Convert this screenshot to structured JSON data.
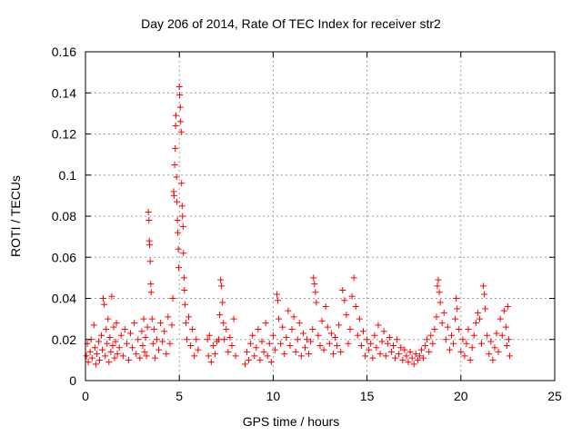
{
  "chart_data": {
    "type": "scatter",
    "title": "Day 206 of 2014, Rate Of TEC Index for receiver str2",
    "xlabel": "GPS time / hours",
    "ylabel": "ROTI / TECUs",
    "xlim": [
      0,
      25
    ],
    "ylim": [
      0,
      0.16
    ],
    "x_ticks": [
      0,
      5,
      10,
      15,
      20,
      25
    ],
    "y_ticks": [
      0,
      0.02,
      0.04,
      0.06,
      0.08,
      0.1,
      0.12,
      0.14,
      0.16
    ],
    "y_tick_labels": [
      "0",
      "0.02",
      "0.04",
      "0.06",
      "0.08",
      "0.1",
      "0.12",
      "0.14",
      "0.16"
    ],
    "grid": true,
    "marker": "+",
    "color": "#ff0000",
    "series": [
      {
        "points": [
          [
            0.05,
            0.012
          ],
          [
            0.1,
            0.018
          ],
          [
            0.15,
            0.009
          ],
          [
            0.25,
            0.014
          ],
          [
            0.3,
            0.02
          ],
          [
            0.35,
            0.011
          ],
          [
            0.45,
            0.027
          ],
          [
            0.5,
            0.016
          ],
          [
            0.55,
            0.008
          ],
          [
            0.6,
            0.013
          ],
          [
            0.7,
            0.019
          ],
          [
            0.75,
            0.01
          ],
          [
            0.85,
            0.022
          ],
          [
            0.9,
            0.015
          ],
          [
            0.95,
            0.04
          ],
          [
            1.0,
            0.037
          ],
          [
            1.05,
            0.012
          ],
          [
            1.1,
            0.025
          ],
          [
            1.15,
            0.018
          ],
          [
            1.2,
            0.03
          ],
          [
            1.25,
            0.009
          ],
          [
            1.3,
            0.021
          ],
          [
            1.35,
            0.014
          ],
          [
            1.4,
            0.041
          ],
          [
            1.45,
            0.017
          ],
          [
            1.5,
            0.026
          ],
          [
            1.55,
            0.011
          ],
          [
            1.6,
            0.019
          ],
          [
            1.65,
            0.028
          ],
          [
            1.7,
            0.013
          ],
          [
            1.8,
            0.016
          ],
          [
            1.9,
            0.022
          ],
          [
            2.0,
            0.012
          ],
          [
            2.1,
            0.025
          ],
          [
            2.2,
            0.018
          ],
          [
            2.3,
            0.01
          ],
          [
            2.4,
            0.023
          ],
          [
            2.5,
            0.016
          ],
          [
            2.6,
            0.028
          ],
          [
            2.7,
            0.013
          ],
          [
            2.8,
            0.02
          ],
          [
            2.9,
            0.011
          ],
          [
            3.0,
            0.024
          ],
          [
            3.05,
            0.017
          ],
          [
            3.1,
            0.03
          ],
          [
            3.15,
            0.014
          ],
          [
            3.2,
            0.021
          ],
          [
            3.25,
            0.012
          ],
          [
            3.3,
            0.026
          ],
          [
            3.35,
            0.082
          ],
          [
            3.38,
            0.078
          ],
          [
            3.4,
            0.068
          ],
          [
            3.42,
            0.066
          ],
          [
            3.45,
            0.058
          ],
          [
            3.48,
            0.047
          ],
          [
            3.5,
            0.043
          ],
          [
            3.55,
            0.03
          ],
          [
            3.6,
            0.018
          ],
          [
            3.65,
            0.025
          ],
          [
            3.7,
            0.011
          ],
          [
            3.8,
            0.02
          ],
          [
            3.9,
            0.015
          ],
          [
            4.0,
            0.028
          ],
          [
            4.1,
            0.019
          ],
          [
            4.2,
            0.024
          ],
          [
            4.3,
            0.013
          ],
          [
            4.4,
            0.031
          ],
          [
            4.5,
            0.018
          ],
          [
            4.6,
            0.027
          ],
          [
            4.65,
            0.04
          ],
          [
            4.7,
            0.092
          ],
          [
            4.72,
            0.09
          ],
          [
            4.75,
            0.105
          ],
          [
            4.78,
            0.113
          ],
          [
            4.8,
            0.124
          ],
          [
            4.82,
            0.129
          ],
          [
            4.85,
            0.099
          ],
          [
            4.87,
            0.087
          ],
          [
            4.9,
            0.078
          ],
          [
            4.92,
            0.072
          ],
          [
            4.95,
            0.064
          ],
          [
            4.97,
            0.055
          ],
          [
            5.0,
            0.143
          ],
          [
            5.02,
            0.139
          ],
          [
            5.05,
            0.133
          ],
          [
            5.07,
            0.126
          ],
          [
            5.1,
            0.121
          ],
          [
            5.12,
            0.096
          ],
          [
            5.15,
            0.085
          ],
          [
            5.17,
            0.08
          ],
          [
            5.2,
            0.075
          ],
          [
            5.22,
            0.062
          ],
          [
            5.25,
            0.05
          ],
          [
            5.27,
            0.044
          ],
          [
            5.3,
            0.037
          ],
          [
            5.35,
            0.028
          ],
          [
            5.4,
            0.02
          ],
          [
            5.5,
            0.031
          ],
          [
            5.6,
            0.017
          ],
          [
            5.7,
            0.025
          ],
          [
            5.8,
            0.012
          ],
          [
            5.9,
            0.02
          ],
          [
            6.0,
            0.015
          ],
          [
            6.5,
            0.02
          ],
          [
            6.55,
            0.012
          ],
          [
            6.6,
            0.022
          ],
          [
            6.7,
            0.009
          ],
          [
            6.8,
            0.017
          ],
          [
            6.9,
            0.013
          ],
          [
            7.0,
            0.019
          ],
          [
            7.1,
            0.02
          ],
          [
            7.15,
            0.032
          ],
          [
            7.2,
            0.049
          ],
          [
            7.25,
            0.046
          ],
          [
            7.3,
            0.038
          ],
          [
            7.35,
            0.028
          ],
          [
            7.4,
            0.02
          ],
          [
            7.5,
            0.025
          ],
          [
            7.6,
            0.014
          ],
          [
            7.7,
            0.021
          ],
          [
            7.8,
            0.017
          ],
          [
            7.9,
            0.03
          ],
          [
            8.0,
            0.012
          ],
          [
            8.5,
            0.008
          ],
          [
            8.6,
            0.014
          ],
          [
            8.7,
            0.01
          ],
          [
            8.8,
            0.018
          ],
          [
            8.9,
            0.022
          ],
          [
            9.0,
            0.012
          ],
          [
            9.1,
            0.016
          ],
          [
            9.2,
            0.025
          ],
          [
            9.3,
            0.01
          ],
          [
            9.4,
            0.019
          ],
          [
            9.5,
            0.014
          ],
          [
            9.6,
            0.028
          ],
          [
            9.7,
            0.012
          ],
          [
            9.8,
            0.018
          ],
          [
            9.9,
            0.009
          ],
          [
            10.0,
            0.022
          ],
          [
            10.1,
            0.015
          ],
          [
            10.2,
            0.042
          ],
          [
            10.25,
            0.039
          ],
          [
            10.3,
            0.03
          ],
          [
            10.4,
            0.018
          ],
          [
            10.5,
            0.026
          ],
          [
            10.6,
            0.013
          ],
          [
            10.7,
            0.021
          ],
          [
            10.8,
            0.034
          ],
          [
            10.9,
            0.017
          ],
          [
            11.0,
            0.025
          ],
          [
            11.1,
            0.031
          ],
          [
            11.2,
            0.014
          ],
          [
            11.3,
            0.02
          ],
          [
            11.4,
            0.028
          ],
          [
            11.5,
            0.012
          ],
          [
            11.6,
            0.023
          ],
          [
            11.7,
            0.016
          ],
          [
            11.8,
            0.02
          ],
          [
            11.9,
            0.013
          ],
          [
            12.0,
            0.019
          ],
          [
            12.1,
            0.025
          ],
          [
            12.15,
            0.05
          ],
          [
            12.2,
            0.047
          ],
          [
            12.25,
            0.043
          ],
          [
            12.3,
            0.038
          ],
          [
            12.4,
            0.022
          ],
          [
            12.5,
            0.017
          ],
          [
            12.6,
            0.029
          ],
          [
            12.7,
            0.015
          ],
          [
            12.8,
            0.036
          ],
          [
            12.9,
            0.026
          ],
          [
            13.0,
            0.018
          ],
          [
            13.1,
            0.023
          ],
          [
            13.2,
            0.013
          ],
          [
            13.3,
            0.021
          ],
          [
            13.4,
            0.017
          ],
          [
            13.5,
            0.027
          ],
          [
            13.6,
            0.014
          ],
          [
            13.7,
            0.044
          ],
          [
            13.8,
            0.039
          ],
          [
            13.9,
            0.032
          ],
          [
            14.0,
            0.018
          ],
          [
            14.1,
            0.025
          ],
          [
            14.2,
            0.041
          ],
          [
            14.3,
            0.05
          ],
          [
            14.4,
            0.036
          ],
          [
            14.5,
            0.022
          ],
          [
            14.6,
            0.03
          ],
          [
            14.7,
            0.017
          ],
          [
            14.8,
            0.024
          ],
          [
            14.9,
            0.012
          ],
          [
            15.0,
            0.02
          ],
          [
            15.1,
            0.015
          ],
          [
            15.2,
            0.018
          ],
          [
            15.3,
            0.011
          ],
          [
            15.4,
            0.022
          ],
          [
            15.5,
            0.016
          ],
          [
            15.6,
            0.027
          ],
          [
            15.7,
            0.013
          ],
          [
            15.8,
            0.019
          ],
          [
            15.9,
            0.024
          ],
          [
            16.0,
            0.012
          ],
          [
            16.1,
            0.018
          ],
          [
            16.2,
            0.021
          ],
          [
            16.3,
            0.014
          ],
          [
            16.4,
            0.017
          ],
          [
            16.5,
            0.011
          ],
          [
            16.6,
            0.02
          ],
          [
            16.7,
            0.013
          ],
          [
            16.8,
            0.016
          ],
          [
            16.9,
            0.01
          ],
          [
            17.0,
            0.015
          ],
          [
            17.1,
            0.012
          ],
          [
            17.2,
            0.009
          ],
          [
            17.3,
            0.014
          ],
          [
            17.4,
            0.011
          ],
          [
            17.5,
            0.008
          ],
          [
            17.6,
            0.013
          ],
          [
            17.7,
            0.01
          ],
          [
            17.8,
            0.012
          ],
          [
            17.9,
            0.015
          ],
          [
            18.0,
            0.011
          ],
          [
            18.1,
            0.017
          ],
          [
            18.2,
            0.02
          ],
          [
            18.3,
            0.014
          ],
          [
            18.4,
            0.022
          ],
          [
            18.5,
            0.018
          ],
          [
            18.6,
            0.025
          ],
          [
            18.7,
            0.031
          ],
          [
            18.75,
            0.046
          ],
          [
            18.8,
            0.049
          ],
          [
            18.85,
            0.043
          ],
          [
            18.9,
            0.038
          ],
          [
            19.0,
            0.028
          ],
          [
            19.1,
            0.033
          ],
          [
            19.2,
            0.02
          ],
          [
            19.3,
            0.026
          ],
          [
            19.4,
            0.015
          ],
          [
            19.5,
            0.022
          ],
          [
            19.6,
            0.018
          ],
          [
            19.7,
            0.03
          ],
          [
            19.75,
            0.04
          ],
          [
            19.8,
            0.035
          ],
          [
            19.9,
            0.025
          ],
          [
            20.0,
            0.014
          ],
          [
            20.1,
            0.02
          ],
          [
            20.2,
            0.012
          ],
          [
            20.3,
            0.018
          ],
          [
            20.4,
            0.025
          ],
          [
            20.5,
            0.01
          ],
          [
            20.6,
            0.016
          ],
          [
            20.7,
            0.022
          ],
          [
            20.8,
            0.028
          ],
          [
            20.9,
            0.033
          ],
          [
            21.0,
            0.03
          ],
          [
            21.1,
            0.018
          ],
          [
            21.2,
            0.046
          ],
          [
            21.25,
            0.042
          ],
          [
            21.3,
            0.035
          ],
          [
            21.4,
            0.022
          ],
          [
            21.5,
            0.013
          ],
          [
            21.6,
            0.019
          ],
          [
            21.7,
            0.01
          ],
          [
            21.8,
            0.016
          ],
          [
            21.9,
            0.023
          ],
          [
            22.0,
            0.014
          ],
          [
            22.1,
            0.03
          ],
          [
            22.2,
            0.022
          ],
          [
            22.3,
            0.034
          ],
          [
            22.4,
            0.026
          ],
          [
            22.45,
            0.017
          ],
          [
            22.5,
            0.036
          ],
          [
            22.55,
            0.02
          ],
          [
            22.6,
            0.012
          ]
        ]
      }
    ]
  }
}
